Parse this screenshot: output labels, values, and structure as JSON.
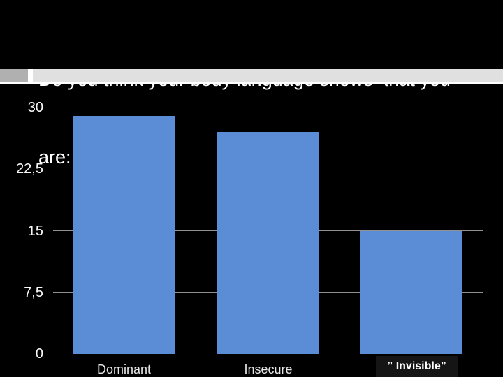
{
  "slide": {
    "title": {
      "line1": "Do you think your body language shows  that you",
      "line2": "are:"
    },
    "background": "#000000",
    "title_color": "#ffffff",
    "divider": {
      "left_block_color": "#b0b0b0",
      "band_color": "#e0e0e0",
      "edge_color": "#ffffff"
    }
  },
  "chart_data": {
    "type": "bar",
    "title": "",
    "xlabel": "",
    "ylabel": "",
    "categories": [
      "Dominant",
      "Insecure",
      "” Invisible”"
    ],
    "values": [
      29,
      27,
      15
    ],
    "ylim": [
      0,
      30
    ],
    "yticks": [
      {
        "value": 30,
        "label": "30",
        "gridline": true
      },
      {
        "value": 22.5,
        "label": "22,5",
        "gridline": false
      },
      {
        "value": 15,
        "label": "15",
        "gridline": true
      },
      {
        "value": 7.5,
        "label": "7,5",
        "gridline": true
      },
      {
        "value": 0,
        "label": "0",
        "gridline": false
      }
    ],
    "bar_color": "#5a8dd6",
    "gridline_color": "#919191",
    "tick_label_color": "#f8f8f8",
    "category_label_color": "#e6e6e6",
    "background": "#000000",
    "legend": "none",
    "highlight_index": 2,
    "highlight_box_color": "#151515",
    "highlight_text_color": "#ffffff"
  }
}
